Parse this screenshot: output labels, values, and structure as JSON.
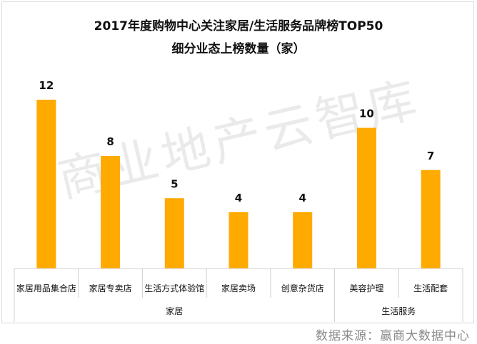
{
  "title": "2017年度购物中心关注家居/生活服务品牌榜TOP50",
  "subtitle": "细分业态上榜数量（家）",
  "watermark": "商业地产云智库",
  "source": "数据来源：赢商大数据中心",
  "colors": {
    "bar": "#FFAA00",
    "axis": "#d0d0d0"
  },
  "chart_data": {
    "type": "bar",
    "title": "2017年度购物中心关注家居/生活服务品牌榜TOP50",
    "subtitle": "细分业态上榜数量（家）",
    "categories": [
      "家居用品集合店",
      "家居专卖店",
      "生活方式体验馆",
      "家居卖场",
      "创意杂货店",
      "美容护理",
      "生活配套"
    ],
    "values": [
      12,
      8,
      5,
      4,
      4,
      10,
      7
    ],
    "groups": [
      {
        "name": "家居",
        "count": 5
      },
      {
        "name": "生活服务",
        "count": 2
      }
    ],
    "ylim": [
      0,
      12
    ],
    "data_labels": true,
    "grid": false,
    "legend": "none"
  }
}
